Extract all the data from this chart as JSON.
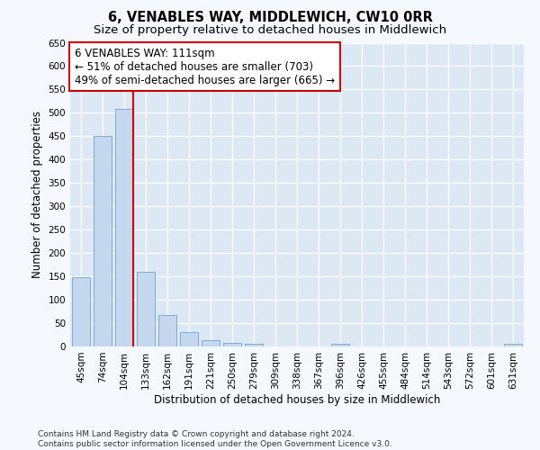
{
  "title": "6, VENABLES WAY, MIDDLEWICH, CW10 0RR",
  "subtitle": "Size of property relative to detached houses in Middlewich",
  "xlabel": "Distribution of detached houses by size in Middlewich",
  "ylabel": "Number of detached properties",
  "categories": [
    "45sqm",
    "74sqm",
    "104sqm",
    "133sqm",
    "162sqm",
    "191sqm",
    "221sqm",
    "250sqm",
    "279sqm",
    "309sqm",
    "338sqm",
    "367sqm",
    "396sqm",
    "426sqm",
    "455sqm",
    "484sqm",
    "514sqm",
    "543sqm",
    "572sqm",
    "601sqm",
    "631sqm"
  ],
  "values": [
    148,
    450,
    509,
    160,
    67,
    30,
    13,
    8,
    5,
    0,
    0,
    0,
    5,
    0,
    0,
    0,
    0,
    0,
    0,
    0,
    5
  ],
  "bar_color": "#c5d8f0",
  "bar_edgecolor": "#7badd4",
  "plot_bg_color": "#dde8f5",
  "fig_bg_color": "#f5f8fd",
  "grid_color": "#ffffff",
  "vline_color": "#cc0000",
  "vline_x_index": 2,
  "annotation_text": "6 VENABLES WAY: 111sqm\n← 51% of detached houses are smaller (703)\n49% of semi-detached houses are larger (665) →",
  "annotation_box_edgecolor": "#cc0000",
  "annotation_box_facecolor": "#ffffff",
  "ylim": [
    0,
    650
  ],
  "yticks": [
    0,
    50,
    100,
    150,
    200,
    250,
    300,
    350,
    400,
    450,
    500,
    550,
    600,
    650
  ],
  "footnote": "Contains HM Land Registry data © Crown copyright and database right 2024.\nContains public sector information licensed under the Open Government Licence v3.0.",
  "title_fontsize": 10.5,
  "subtitle_fontsize": 9.5,
  "xlabel_fontsize": 8.5,
  "ylabel_fontsize": 8.5,
  "tick_fontsize": 7.5,
  "annotation_fontsize": 8.5,
  "footnote_fontsize": 6.5
}
